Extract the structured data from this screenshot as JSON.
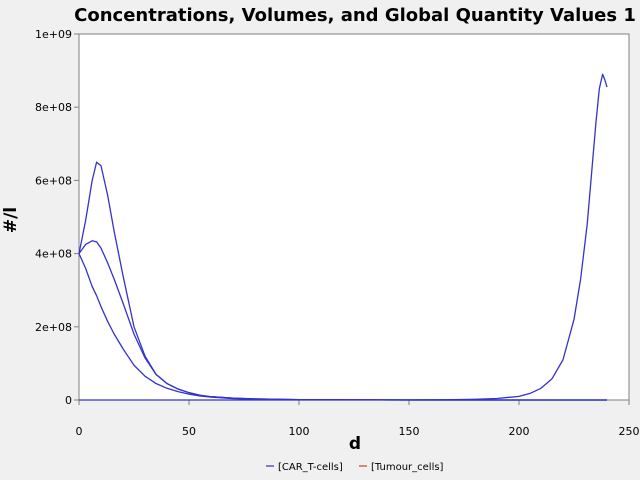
{
  "chart_data": {
    "type": "line",
    "title": "Concentrations, Volumes, and Global Quantity Values 1",
    "xlabel": "d",
    "ylabel": "#/l",
    "xlim": [
      0,
      250
    ],
    "ylim": [
      0,
      1000000000
    ],
    "x_ticks": [
      0,
      50,
      100,
      150,
      200,
      250
    ],
    "x_tick_labels": [
      "0",
      "50",
      "100",
      "150",
      "200",
      "250"
    ],
    "y_ticks": [
      0,
      200000000,
      400000000,
      600000000,
      800000000,
      1000000000
    ],
    "y_tick_labels": [
      "0",
      "2e+08",
      "4e+08",
      "6e+08",
      "8e+08",
      "1e+09"
    ],
    "grid": false,
    "legend_position": "bottom",
    "legend": [
      {
        "label": "[CAR_T-cells]",
        "color": "#3333cc"
      },
      {
        "label": "[Tumour_cells]",
        "color": "#b84a2e"
      }
    ],
    "series": [
      {
        "legend_label": "[CAR_T-cells]",
        "color": "#3333cc",
        "x": [
          0,
          3,
          6,
          8,
          10,
          13,
          16,
          20,
          25,
          30,
          35,
          40,
          45,
          50,
          55,
          60,
          70,
          80,
          100,
          150,
          240
        ],
        "values": [
          400000000,
          490000000,
          600000000,
          650000000,
          640000000,
          560000000,
          460000000,
          340000000,
          200000000,
          120000000,
          70000000,
          45000000,
          30000000,
          20000000,
          13000000,
          9000000,
          5000000,
          3000000,
          1000000,
          0,
          0
        ]
      },
      {
        "legend_label": "[CAR_T-cells]",
        "color": "#3333cc",
        "x": [
          0,
          3,
          6,
          8,
          10,
          13,
          16,
          20,
          25,
          30,
          35,
          40,
          45,
          50,
          55,
          60,
          70,
          80,
          100,
          150,
          240
        ],
        "values": [
          400000000,
          425000000,
          435000000,
          432000000,
          415000000,
          375000000,
          330000000,
          265000000,
          180000000,
          115000000,
          70000000,
          45000000,
          30000000,
          20000000,
          13000000,
          9000000,
          5000000,
          3000000,
          1000000,
          0,
          0
        ]
      },
      {
        "legend_label": "[CAR_T-cells]",
        "color": "#3333cc",
        "x": [
          0,
          3,
          6,
          8,
          10,
          13,
          16,
          20,
          25,
          30,
          35,
          40,
          45,
          50,
          55,
          60,
          70,
          80,
          100,
          150,
          240
        ],
        "values": [
          400000000,
          360000000,
          310000000,
          285000000,
          255000000,
          215000000,
          180000000,
          140000000,
          95000000,
          65000000,
          45000000,
          32000000,
          23000000,
          16000000,
          11000000,
          8000000,
          4000000,
          2000000,
          1000000,
          0,
          0
        ]
      },
      {
        "legend_label": "[CAR_T-cells]",
        "color": "#3333cc",
        "x": [
          0,
          60,
          100,
          140,
          170,
          180,
          190,
          200,
          205,
          210,
          215,
          220,
          225,
          228,
          231,
          233,
          235,
          236.5,
          238,
          239,
          240
        ],
        "values": [
          0,
          0,
          0,
          0,
          1000000,
          2000000,
          4000000,
          10000000,
          18000000,
          32000000,
          58000000,
          110000000,
          220000000,
          330000000,
          480000000,
          620000000,
          760000000,
          850000000,
          890000000,
          875000000,
          855000000
        ]
      }
    ]
  }
}
